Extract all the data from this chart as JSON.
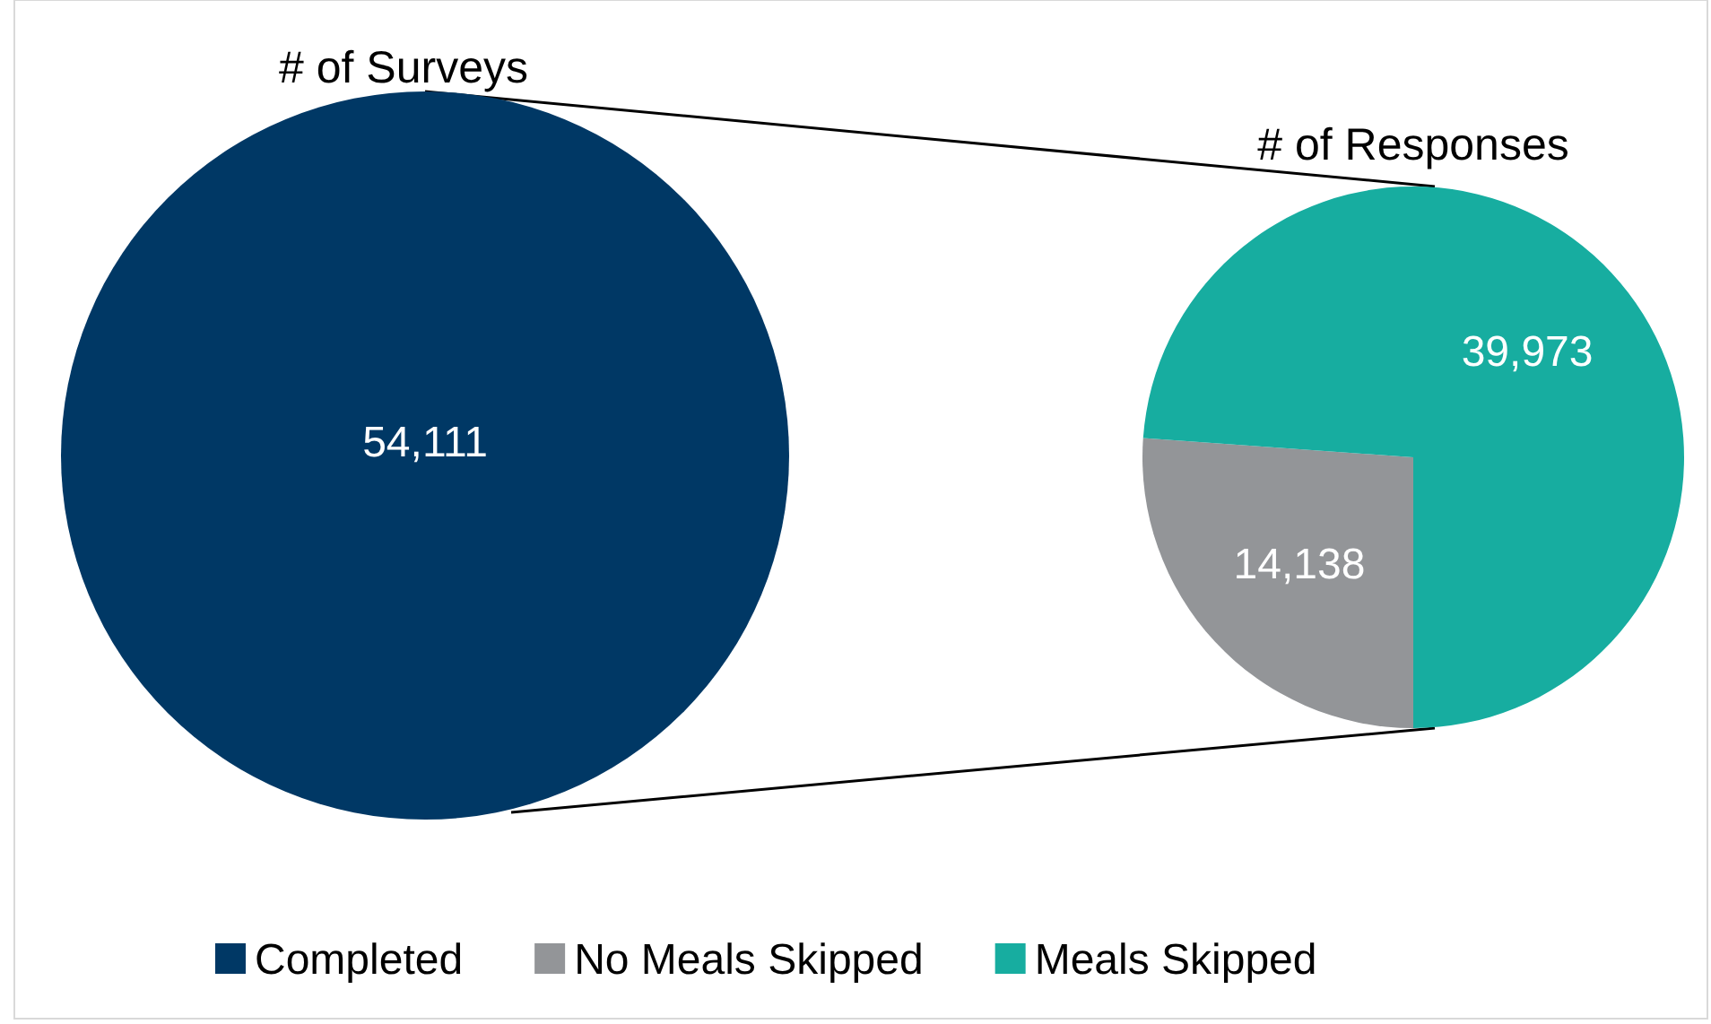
{
  "chart_data": [
    {
      "type": "pie",
      "title": "# of Surveys",
      "categories": [
        "Completed"
      ],
      "values": [
        54111
      ],
      "value_labels": [
        "54,111"
      ],
      "colors": [
        "#003865"
      ],
      "legend": "bottom"
    },
    {
      "type": "pie",
      "title": "# of Responses",
      "categories": [
        "No Meals Skipped",
        "Meals Skipped"
      ],
      "values": [
        14138,
        39973
      ],
      "value_labels": [
        "14,138",
        "39,973"
      ],
      "colors": [
        "#939598",
        "#17ada0"
      ],
      "legend": "bottom"
    }
  ]
}
